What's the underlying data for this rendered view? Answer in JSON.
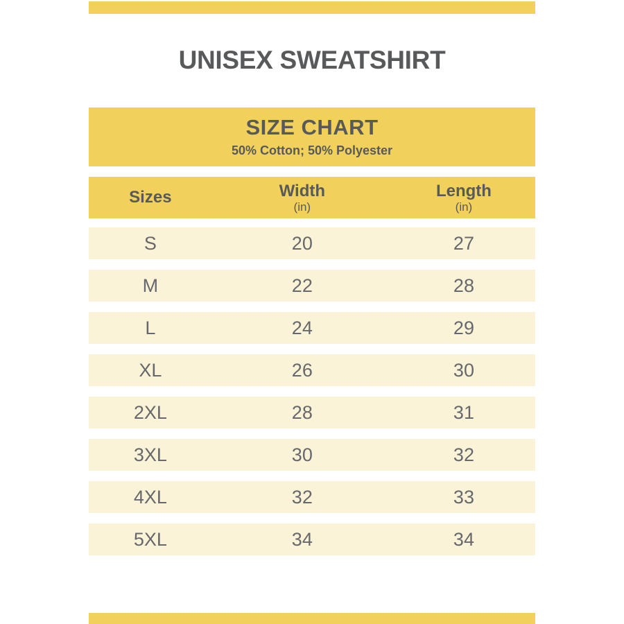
{
  "page_title": "UNISEX SWEATSHIRT",
  "chart_data": {
    "type": "table",
    "title": "SIZE CHART",
    "subtitle": "50% Cotton; 50% Polyester",
    "columns": [
      {
        "label": "Sizes",
        "unit": ""
      },
      {
        "label": "Width",
        "unit": "(in)"
      },
      {
        "label": "Length",
        "unit": "(in)"
      }
    ],
    "rows": [
      {
        "size": "S",
        "width": "20",
        "length": "27"
      },
      {
        "size": "M",
        "width": "22",
        "length": "28"
      },
      {
        "size": "L",
        "width": "24",
        "length": "29"
      },
      {
        "size": "XL",
        "width": "26",
        "length": "30"
      },
      {
        "size": "2XL",
        "width": "28",
        "length": "31"
      },
      {
        "size": "3XL",
        "width": "30",
        "length": "32"
      },
      {
        "size": "4XL",
        "width": "32",
        "length": "33"
      },
      {
        "size": "5XL",
        "width": "34",
        "length": "34"
      }
    ]
  },
  "colors": {
    "accent_yellow": "#F1D15B",
    "row_cream": "#FBF3D8",
    "heading_text": "#58595B",
    "data_text": "#67686C",
    "background": "#FFFFFF"
  }
}
